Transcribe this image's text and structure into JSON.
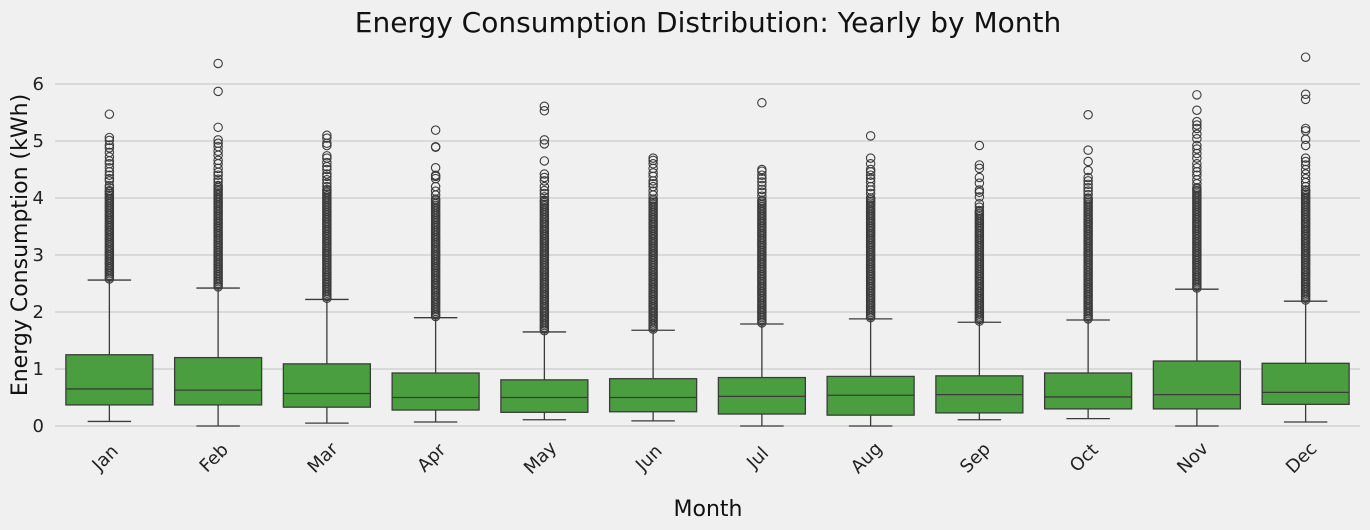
{
  "chart_data": {
    "type": "box",
    "title": "Energy Consumption Distribution: Yearly by Month",
    "xlabel": "Month",
    "ylabel": "Energy Consumption (kWh)",
    "ylim": [
      -0.1,
      6.65
    ],
    "yticks": [
      0,
      1,
      2,
      3,
      4,
      5,
      6
    ],
    "grid": "horizontal",
    "box_color": "#4a9e3f",
    "categories": [
      "Jan",
      "Feb",
      "Mar",
      "Apr",
      "May",
      "Jun",
      "Jul",
      "Aug",
      "Sep",
      "Oct",
      "Nov",
      "Dec"
    ],
    "boxes": [
      {
        "month": "Jan",
        "whislo": 0.08,
        "q1": 0.37,
        "med": 0.65,
        "q3": 1.25,
        "whishi": 2.56,
        "flier_max": 5.47,
        "fliers": [
          5.47,
          5.06,
          5.01,
          4.93,
          4.88,
          4.8,
          4.72,
          4.65,
          4.6,
          4.53,
          4.46,
          4.4,
          4.34,
          4.3,
          4.22,
          4.18,
          4.13
        ]
      },
      {
        "month": "Feb",
        "whislo": 0.0,
        "q1": 0.37,
        "med": 0.63,
        "q3": 1.2,
        "whishi": 2.42,
        "flier_max": 6.36,
        "fliers": [
          6.36,
          5.87,
          5.24,
          5.02,
          4.96,
          4.9,
          4.82,
          4.75,
          4.66,
          4.6,
          4.52,
          4.45,
          4.4,
          4.33,
          4.28,
          4.22
        ]
      },
      {
        "month": "Mar",
        "whislo": 0.05,
        "q1": 0.33,
        "med": 0.57,
        "q3": 1.09,
        "whishi": 2.22,
        "flier_max": 5.1,
        "fliers": [
          5.1,
          5.05,
          4.96,
          4.92,
          4.74,
          4.7,
          4.62,
          4.55,
          4.5,
          4.42,
          4.38,
          4.32,
          4.26,
          4.2,
          4.15
        ]
      },
      {
        "month": "Apr",
        "whislo": 0.07,
        "q1": 0.28,
        "med": 0.5,
        "q3": 0.93,
        "whishi": 1.9,
        "flier_max": 5.19,
        "fliers": [
          5.19,
          4.9,
          4.89,
          4.53,
          4.4,
          4.38,
          4.34,
          4.2,
          4.12,
          4.05,
          3.98
        ]
      },
      {
        "month": "May",
        "whislo": 0.11,
        "q1": 0.24,
        "med": 0.5,
        "q3": 0.81,
        "whishi": 1.65,
        "flier_max": 5.61,
        "fliers": [
          5.61,
          5.53,
          5.02,
          4.95,
          4.65,
          4.42,
          4.36,
          4.3,
          4.2,
          4.13,
          4.08,
          4.02,
          3.96
        ]
      },
      {
        "month": "Jun",
        "whislo": 0.09,
        "q1": 0.25,
        "med": 0.5,
        "q3": 0.83,
        "whishi": 1.68,
        "flier_max": 4.7,
        "fliers": [
          4.7,
          4.66,
          4.6,
          4.52,
          4.44,
          4.38,
          4.3,
          4.25,
          4.2,
          4.12,
          4.05,
          3.98
        ]
      },
      {
        "month": "Jul",
        "whislo": 0.0,
        "q1": 0.21,
        "med": 0.52,
        "q3": 0.85,
        "whishi": 1.79,
        "flier_max": 5.67,
        "fliers": [
          5.67,
          4.5,
          4.47,
          4.4,
          4.34,
          4.28,
          4.22,
          4.15,
          4.1,
          4.03,
          3.96
        ]
      },
      {
        "month": "Aug",
        "whislo": 0.0,
        "q1": 0.19,
        "med": 0.54,
        "q3": 0.87,
        "whishi": 1.88,
        "flier_max": 5.09,
        "fliers": [
          5.09,
          4.7,
          4.6,
          4.5,
          4.46,
          4.4,
          4.34,
          4.28,
          4.2,
          4.14,
          4.08,
          4.0
        ]
      },
      {
        "month": "Sep",
        "whislo": 0.11,
        "q1": 0.23,
        "med": 0.55,
        "q3": 0.88,
        "whishi": 1.82,
        "flier_max": 4.92,
        "fliers": [
          4.92,
          4.58,
          4.52,
          4.36,
          4.26,
          4.14,
          4.1,
          4.02,
          3.9,
          3.84,
          3.78
        ]
      },
      {
        "month": "Oct",
        "whislo": 0.13,
        "q1": 0.3,
        "med": 0.51,
        "q3": 0.93,
        "whishi": 1.86,
        "flier_max": 5.46,
        "fliers": [
          5.46,
          4.84,
          4.64,
          4.48,
          4.36,
          4.3,
          4.24,
          4.18,
          4.12,
          4.06,
          4.0
        ]
      },
      {
        "month": "Nov",
        "whislo": 0.0,
        "q1": 0.3,
        "med": 0.55,
        "q3": 1.14,
        "whishi": 2.4,
        "flier_max": 5.81,
        "fliers": [
          5.81,
          5.54,
          5.34,
          5.28,
          5.22,
          5.12,
          5.04,
          4.92,
          4.86,
          4.78,
          4.7,
          4.6,
          4.53,
          4.46,
          4.4,
          4.32,
          4.25,
          4.18
        ]
      },
      {
        "month": "Dec",
        "whislo": 0.07,
        "q1": 0.38,
        "med": 0.59,
        "q3": 1.1,
        "whishi": 2.19,
        "flier_max": 6.47,
        "fliers": [
          6.47,
          5.82,
          5.73,
          5.22,
          5.18,
          5.03,
          4.92,
          4.7,
          4.64,
          4.58,
          4.5,
          4.42,
          4.34,
          4.27,
          4.2,
          4.14
        ]
      }
    ]
  }
}
